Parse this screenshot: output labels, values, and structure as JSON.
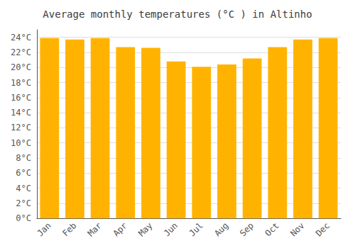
{
  "chart_data": {
    "type": "bar",
    "title": "Average monthly temperatures (°C ) in Altinho",
    "categories": [
      "Jan",
      "Feb",
      "Mar",
      "Apr",
      "May",
      "Jun",
      "Jul",
      "Aug",
      "Sep",
      "Oct",
      "Nov",
      "Dec"
    ],
    "values": [
      23.9,
      23.7,
      23.9,
      22.7,
      22.6,
      20.8,
      20.1,
      20.4,
      21.2,
      22.7,
      23.7,
      23.9
    ],
    "color": "#FFB300",
    "ylim": [
      0,
      25
    ],
    "yticks": [
      {
        "value": 0,
        "label": "0°C"
      },
      {
        "value": 2,
        "label": "2°C"
      },
      {
        "value": 4,
        "label": "4°C"
      },
      {
        "value": 6,
        "label": "6°C"
      },
      {
        "value": 8,
        "label": "8°C"
      },
      {
        "value": 10,
        "label": "10°C"
      },
      {
        "value": 12,
        "label": "12°C"
      },
      {
        "value": 14,
        "label": "14°C"
      },
      {
        "value": 16,
        "label": "16°C"
      },
      {
        "value": 18,
        "label": "18°C"
      },
      {
        "value": 20,
        "label": "20°C"
      },
      {
        "value": 22,
        "label": "22°C"
      },
      {
        "value": 24,
        "label": "24°C"
      }
    ],
    "grid": true
  }
}
